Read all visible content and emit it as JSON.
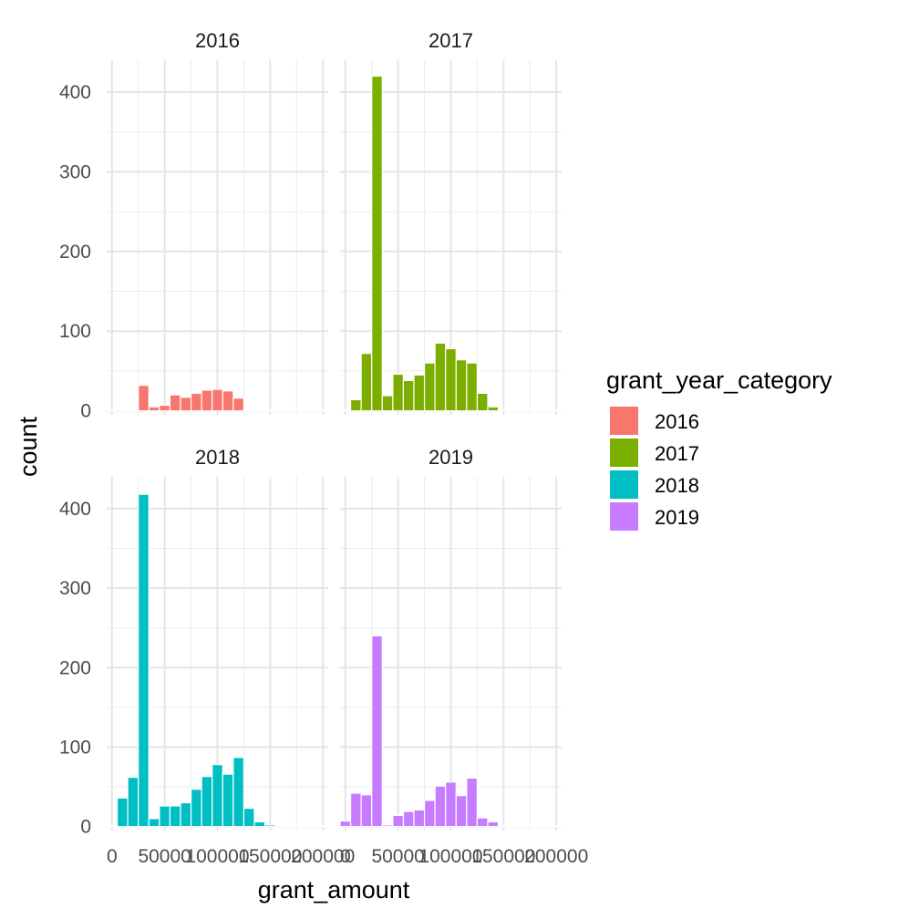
{
  "chart_data": {
    "type": "bar",
    "facets": [
      "2016",
      "2017",
      "2018",
      "2019"
    ],
    "xlabel": "grant_amount",
    "ylabel": "count",
    "x_ticks": [
      0,
      50000,
      100000,
      150000,
      200000
    ],
    "x_tick_labels": [
      "0",
      "50000",
      "100000",
      "150000",
      "200000"
    ],
    "xlim": [
      -5000,
      205000
    ],
    "y_ticks": [
      0,
      100,
      200,
      300,
      400
    ],
    "y_tick_labels": [
      "0",
      "100",
      "200",
      "300",
      "400"
    ],
    "ylim": [
      -5,
      440
    ],
    "bin_width": 10000,
    "bin_centers": [
      0,
      10000,
      20000,
      30000,
      40000,
      50000,
      60000,
      70000,
      80000,
      90000,
      100000,
      110000,
      120000,
      130000,
      140000,
      150000,
      160000,
      170000,
      180000,
      190000,
      200000
    ],
    "series": [
      {
        "name": "2016",
        "color": "#F8766D",
        "values": [
          0,
          0,
          0,
          32,
          5,
          7,
          20,
          17,
          22,
          26,
          27,
          25,
          16,
          0,
          0,
          0,
          0,
          0,
          0,
          0,
          0
        ]
      },
      {
        "name": "2017",
        "color": "#7CAE00",
        "values": [
          1,
          14,
          72,
          420,
          19,
          46,
          38,
          45,
          60,
          85,
          78,
          64,
          60,
          22,
          5,
          0,
          0,
          0,
          0,
          0,
          0
        ]
      },
      {
        "name": "2018",
        "color": "#00BFC4",
        "values": [
          1,
          36,
          62,
          418,
          10,
          26,
          26,
          30,
          47,
          63,
          78,
          66,
          87,
          23,
          6,
          2,
          1,
          0,
          0,
          0,
          0
        ]
      },
      {
        "name": "2019",
        "color": "#C77CFF",
        "values": [
          7,
          42,
          40,
          240,
          2,
          14,
          19,
          21,
          33,
          51,
          56,
          39,
          61,
          11,
          6,
          1,
          0,
          0,
          0,
          0,
          0
        ]
      }
    ],
    "legend": {
      "title": "grant_year_category",
      "position": "right"
    },
    "grid": true
  }
}
